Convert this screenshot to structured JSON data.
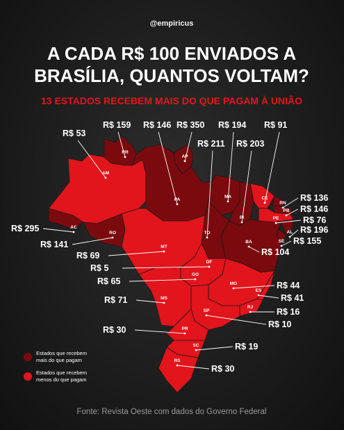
{
  "header": {
    "handle": "@empiricus",
    "title_lines": [
      "A CADA R$ 100 ENVIADOS A",
      "BRASÍLIA, QUANTOS VOLTAM?"
    ],
    "subtitle": "13 ESTADOS RECEBEM MAIS DO QUE PAGAM À UNIÃO"
  },
  "map": {
    "colors": {
      "more": "#7a0a0e",
      "less": "#e2141c"
    },
    "states": [
      {
        "code": "AM",
        "label": "R$ 53",
        "receives_more": false
      },
      {
        "code": "RR",
        "label": "R$ 159",
        "receives_more": true
      },
      {
        "code": "PA",
        "label": "R$ 146",
        "receives_more": true
      },
      {
        "code": "AP",
        "label": "R$ 350",
        "receives_more": true
      },
      {
        "code": "TO",
        "label": "R$ 211",
        "receives_more": true
      },
      {
        "code": "MA",
        "label": "R$ 194",
        "receives_more": true
      },
      {
        "code": "PI",
        "label": "R$ 203",
        "receives_more": true
      },
      {
        "code": "CE",
        "label": "R$ 91",
        "receives_more": false
      },
      {
        "code": "RN",
        "label": "R$ 136",
        "receives_more": true
      },
      {
        "code": "PB",
        "label": "R$ 146",
        "receives_more": true
      },
      {
        "code": "PE",
        "label": "R$ 76",
        "receives_more": false
      },
      {
        "code": "AL",
        "label": "R$ 196",
        "receives_more": true
      },
      {
        "code": "SE",
        "label": "R$ 155",
        "receives_more": true
      },
      {
        "code": "BA",
        "label": "R$ 104",
        "receives_more": true
      },
      {
        "code": "AC",
        "label": "R$ 295",
        "receives_more": true
      },
      {
        "code": "RO",
        "label": "R$ 141",
        "receives_more": true
      },
      {
        "code": "MT",
        "label": "R$ 69",
        "receives_more": false
      },
      {
        "code": "DF",
        "label": "R$ 5",
        "receives_more": false
      },
      {
        "code": "GO",
        "label": "R$ 65",
        "receives_more": false
      },
      {
        "code": "MG",
        "label": "R$ 44",
        "receives_more": false
      },
      {
        "code": "ES",
        "label": "R$ 41",
        "receives_more": false
      },
      {
        "code": "MS",
        "label": "R$ 71",
        "receives_more": false
      },
      {
        "code": "RJ",
        "label": "R$ 16",
        "receives_more": false
      },
      {
        "code": "SP",
        "label": "R$ 10",
        "receives_more": false
      },
      {
        "code": "PR",
        "label": "R$ 30",
        "receives_more": false
      },
      {
        "code": "SC",
        "label": "R$ 19",
        "receives_more": false
      },
      {
        "code": "RS",
        "label": "R$ 30",
        "receives_more": false
      }
    ]
  },
  "legend": {
    "more": [
      "Estados que recebem",
      "mais do que pagam"
    ],
    "less": [
      "Estados que recebem",
      "menos do que pagam"
    ]
  },
  "footer": {
    "source": "Fonte: Revista Oeste com dados do Governo Federal"
  }
}
